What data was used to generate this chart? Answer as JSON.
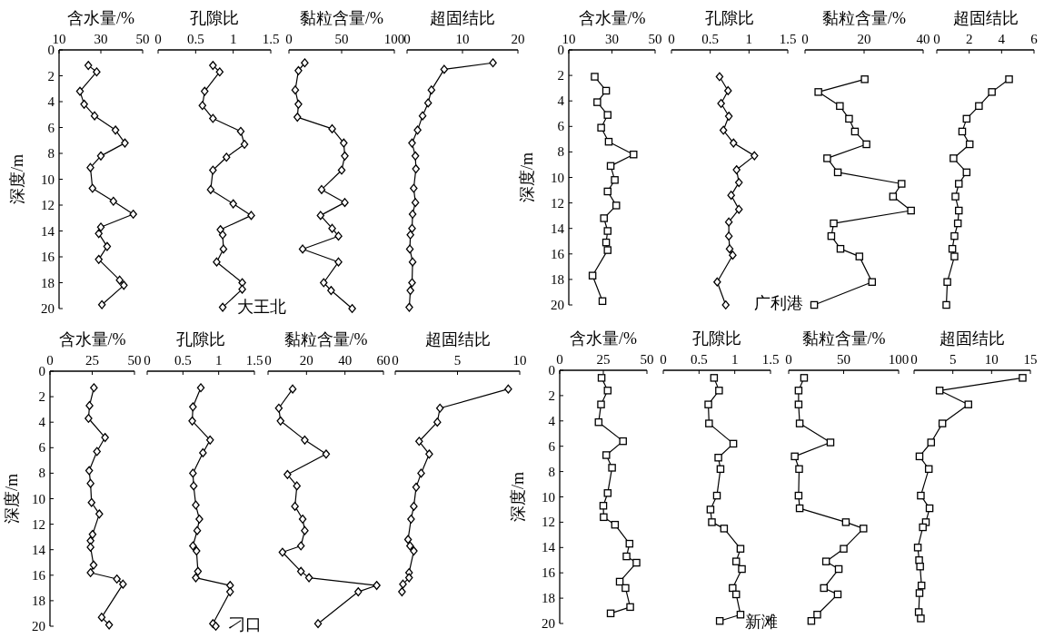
{
  "chart_data": [
    {
      "type": "line",
      "xlabel": "含水量/%",
      "ylabel": "深度/m",
      "xlim": [
        10,
        50
      ],
      "xticks": [
        10,
        30,
        50
      ],
      "ylim": [
        20,
        0
      ],
      "yticks": [
        0,
        2,
        4,
        6,
        8,
        10,
        12,
        14,
        16,
        18,
        20
      ],
      "marker": "diamond",
      "line_style": "solid",
      "series": [
        {
          "color": "#000000",
          "x": [
            24,
            28,
            20,
            22,
            27,
            37,
            41.5,
            30,
            25,
            26,
            36,
            45.5,
            30,
            29,
            33,
            29,
            39,
            41,
            30.5
          ],
          "values": [
            1.2,
            1.7,
            3.2,
            4.2,
            5.1,
            6.2,
            7.2,
            8.2,
            9.1,
            10.7,
            11.7,
            12.7,
            13.7,
            14.2,
            15.2,
            16.2,
            17.8,
            18.2,
            19.7
          ]
        }
      ]
    },
    {
      "type": "line",
      "xlabel": "孔隙比",
      "xlim": [
        0,
        1.5
      ],
      "xticks": [
        0,
        0.5,
        1,
        1.5
      ],
      "ylim": [
        20,
        0
      ],
      "tick_labels": "x",
      "marker": "diamond",
      "line_style": "solid",
      "annotations": [
        "大王北"
      ],
      "series": [
        {
          "color": "#000000",
          "x": [
            0.73,
            0.82,
            0.62,
            0.59,
            0.73,
            1.1,
            1.15,
            0.91,
            0.73,
            0.7,
            1.0,
            1.24,
            0.83,
            0.86,
            0.87,
            0.78,
            1.12,
            1.12,
            0.86
          ],
          "values": [
            1.2,
            1.7,
            3.2,
            4.3,
            5.3,
            6.3,
            7.3,
            8.3,
            9.3,
            10.8,
            11.9,
            12.8,
            13.9,
            14.3,
            15.4,
            16.4,
            18.0,
            18.5,
            19.9
          ]
        }
      ]
    },
    {
      "type": "line",
      "xlabel": "黏粒含量/%",
      "xlim": [
        0,
        100
      ],
      "xticks": [
        0,
        50,
        100
      ],
      "ylim": [
        20,
        0
      ],
      "tick_labels": "x",
      "marker": "diamond",
      "line_style": "solid",
      "series": [
        {
          "color": "#000000",
          "x": [
            15,
            9,
            6,
            9,
            8,
            41,
            52,
            53,
            50,
            31,
            53,
            30,
            41,
            47,
            13,
            47,
            33,
            40,
            60
          ],
          "values": [
            1.0,
            1.6,
            3.1,
            4.2,
            5.2,
            6.1,
            7.2,
            8.2,
            9.3,
            10.8,
            11.8,
            12.8,
            13.8,
            14.4,
            15.4,
            16.4,
            18.0,
            18.6,
            20.0
          ]
        }
      ]
    },
    {
      "type": "line",
      "xlabel": "超固结比",
      "xlim": [
        0,
        20
      ],
      "xticks": [
        0,
        10,
        20
      ],
      "ylim": [
        20,
        0
      ],
      "tick_labels": "x",
      "marker": "diamond",
      "line_style": "solid",
      "series": [
        {
          "color": "#000000",
          "x": [
            15.5,
            6.7,
            4.4,
            3.8,
            2.8,
            1.9,
            0.9,
            1.5,
            1.6,
            1.2,
            1.5,
            1.0,
            0.9,
            0.6,
            0.5,
            1.0,
            0.9,
            0.6,
            0.4
          ],
          "values": [
            1.0,
            1.5,
            3.1,
            4.1,
            5.1,
            6.2,
            7.2,
            8.2,
            9.2,
            10.7,
            11.8,
            12.7,
            13.8,
            14.3,
            15.4,
            16.4,
            18.0,
            18.6,
            19.9
          ]
        }
      ]
    },
    {
      "type": "line",
      "xlabel": "含水量/%",
      "ylabel": "深度/m",
      "xlim": [
        10,
        50
      ],
      "xticks": [
        10,
        30,
        50
      ],
      "ylim": [
        20,
        0
      ],
      "yticks": [
        0,
        2,
        4,
        6,
        8,
        10,
        12,
        14,
        16,
        18,
        20
      ],
      "marker": "square",
      "line_style": "solid",
      "series": [
        {
          "color": "#000000",
          "x": [
            22,
            27.3,
            23.2,
            28,
            25,
            28.5,
            40,
            29.4,
            31.3,
            28,
            32,
            26.3,
            28,
            27.3,
            28,
            21,
            25.6
          ],
          "values": [
            2.1,
            3.2,
            4.1,
            5.1,
            6.1,
            7.2,
            8.2,
            9.1,
            10.2,
            11.1,
            12.2,
            13.2,
            14.2,
            15.1,
            15.7,
            17.7,
            19.7
          ]
        }
      ]
    },
    {
      "type": "line",
      "xlabel": "孔隙比",
      "xlim": [
        0,
        1.5
      ],
      "xticks": [
        0,
        0.5,
        1,
        1.5
      ],
      "ylim": [
        20,
        0
      ],
      "tick_labels": "x",
      "marker": "diamond",
      "line_style": "solid",
      "annotations": [
        "广利港"
      ],
      "series": [
        {
          "color": "#000000",
          "x": [
            0.62,
            0.73,
            0.64,
            0.74,
            0.67,
            0.8,
            1.07,
            0.84,
            0.87,
            0.77,
            0.87,
            0.74,
            0.74,
            0.75,
            0.79,
            0.59,
            0.7
          ],
          "values": [
            2.1,
            3.2,
            4.2,
            5.2,
            6.3,
            7.3,
            8.3,
            9.4,
            10.4,
            11.4,
            12.5,
            13.5,
            14.6,
            15.6,
            16.1,
            18.2,
            20.0
          ]
        }
      ]
    },
    {
      "type": "line",
      "xlabel": "黏粒含量/%",
      "xlim": [
        0,
        40
      ],
      "xticks": [
        0,
        20,
        40
      ],
      "ylim": [
        20,
        0
      ],
      "tick_labels": "x",
      "marker": "square",
      "line_style": "solid",
      "series": [
        {
          "color": "#000000",
          "x": [
            20.2,
            4.5,
            11.8,
            14.9,
            16.9,
            20.8,
            7.5,
            11.1,
            32.7,
            29.8,
            35.9,
            9.7,
            8.9,
            12,
            18.4,
            22.7,
            3.1
          ],
          "values": [
            2.3,
            3.3,
            4.4,
            5.4,
            6.4,
            7.4,
            8.5,
            9.6,
            10.5,
            11.5,
            12.6,
            13.6,
            14.6,
            15.6,
            16.2,
            18.2,
            20.0
          ]
        }
      ]
    },
    {
      "type": "line",
      "xlabel": "超固结比",
      "xlim": [
        0,
        6
      ],
      "xticks": [
        0,
        2,
        4,
        6
      ],
      "ylim": [
        20,
        0
      ],
      "tick_labels": "x",
      "marker": "square",
      "line_style": "solid",
      "series": [
        {
          "color": "#000000",
          "x": [
            4.46,
            3.4,
            2.6,
            1.84,
            1.57,
            2.03,
            1.03,
            1.84,
            1.36,
            1.15,
            1.36,
            1.3,
            1.09,
            0.96,
            1.09,
            0.65,
            0.59
          ],
          "values": [
            2.3,
            3.3,
            4.4,
            5.4,
            6.4,
            7.4,
            8.5,
            9.6,
            10.5,
            11.5,
            12.6,
            13.6,
            14.6,
            15.6,
            16.2,
            18.2,
            20.0
          ]
        }
      ]
    },
    {
      "type": "line",
      "xlabel": "含水量/%",
      "ylabel": "深度/m",
      "xlim": [
        0,
        50
      ],
      "xticks": [
        0,
        25,
        50
      ],
      "ylim": [
        20,
        0
      ],
      "yticks": [
        0,
        2,
        4,
        6,
        8,
        10,
        12,
        14,
        16,
        18,
        20
      ],
      "marker": "diamond",
      "line_style": "solid",
      "series": [
        {
          "color": "#000000",
          "x": [
            26,
            23.4,
            22.8,
            32.6,
            27.8,
            23.2,
            24,
            24.6,
            29.2,
            25.2,
            24,
            24,
            25.8,
            24,
            39.6,
            43.2,
            30.6,
            35
          ],
          "values": [
            1.3,
            2.7,
            3.7,
            5.2,
            6.3,
            7.8,
            8.8,
            10.3,
            11.2,
            12.8,
            13.3,
            13.8,
            15.2,
            15.8,
            16.3,
            16.7,
            19.3,
            19.9
          ]
        }
      ]
    },
    {
      "type": "line",
      "xlabel": "孔隙比",
      "xlim": [
        0,
        1.5
      ],
      "xticks": [
        0,
        0.5,
        1,
        1.5
      ],
      "ylim": [
        20,
        0
      ],
      "tick_labels": "x",
      "marker": "diamond",
      "line_style": "solid",
      "annotations": [
        "刁口"
      ],
      "series": [
        {
          "color": "#000000",
          "x": [
            0.75,
            0.64,
            0.63,
            0.88,
            0.78,
            0.64,
            0.65,
            0.68,
            0.73,
            0.7,
            0.64,
            0.69,
            0.71,
            0.68,
            1.16,
            1.16,
            0.92,
            0.96
          ],
          "values": [
            1.3,
            2.8,
            3.9,
            5.4,
            6.4,
            8.0,
            9.0,
            10.5,
            11.6,
            12.5,
            13.7,
            14.1,
            15.7,
            16.2,
            16.8,
            17.3,
            19.8,
            20.0
          ]
        }
      ]
    },
    {
      "type": "line",
      "xlabel": "黏粒含量/%",
      "xlim": [
        0,
        60
      ],
      "xticks": [
        0,
        20,
        40,
        60
      ],
      "ylim": [
        20,
        0
      ],
      "tick_labels": "x",
      "marker": "diamond",
      "line_style": "solid",
      "series": [
        {
          "color": "#000000",
          "x": [
            12.8,
            5.6,
            6.5,
            19.1,
            30.2,
            10.1,
            15,
            14,
            18,
            19.1,
            17.1,
            7.5,
            17.1,
            21.3,
            56.5,
            46.9,
            26
          ],
          "values": [
            1.4,
            2.9,
            3.9,
            5.4,
            6.5,
            8.1,
            9.0,
            10.6,
            11.6,
            12.5,
            13.7,
            14.2,
            15.7,
            16.2,
            16.8,
            17.3,
            19.8
          ]
        }
      ]
    },
    {
      "type": "line",
      "xlabel": "超固结比",
      "xlim": [
        0,
        10
      ],
      "xticks": [
        0,
        5,
        10
      ],
      "ylim": [
        20,
        0
      ],
      "tick_labels": "x",
      "marker": "diamond",
      "line_style": "solid",
      "series": [
        {
          "color": "#000000",
          "x": [
            9.08,
            3.59,
            3.38,
            1.92,
            2.73,
            2.08,
            1.68,
            1.49,
            1.27,
            1.03,
            1.19,
            1.49,
            1.11,
            1.11,
            0.62,
            0.54
          ],
          "values": [
            1.4,
            2.9,
            4.0,
            5.5,
            6.5,
            8.0,
            9.1,
            10.6,
            11.6,
            13.2,
            13.7,
            14.1,
            15.8,
            16.2,
            16.7,
            17.3
          ]
        }
      ]
    },
    {
      "type": "line",
      "xlabel": "含水量/%",
      "ylabel": "深度/m",
      "xlim": [
        0,
        50
      ],
      "xticks": [
        0,
        25,
        50
      ],
      "ylim": [
        20,
        0
      ],
      "yticks": [
        0,
        2,
        4,
        6,
        8,
        10,
        12,
        14,
        16,
        18,
        20
      ],
      "marker": "square",
      "line_style": "solid",
      "series": [
        {
          "color": "#000000",
          "x": [
            24,
            27.5,
            23.7,
            22.3,
            36.3,
            26.7,
            30,
            27.5,
            25,
            25.2,
            31.7,
            40,
            38.3,
            44,
            34.4,
            37.7,
            40.4,
            29.2
          ],
          "values": [
            0.6,
            1.6,
            2.7,
            4.1,
            5.6,
            6.7,
            7.7,
            9.7,
            10.7,
            11.6,
            12.2,
            13.7,
            14.7,
            15.2,
            16.7,
            17.2,
            18.7,
            19.2
          ]
        }
      ]
    },
    {
      "type": "line",
      "xlabel": "孔隙比",
      "xlim": [
        0,
        1.5
      ],
      "xticks": [
        0,
        0.5,
        1,
        1.5
      ],
      "ylim": [
        20,
        0
      ],
      "tick_labels": "x",
      "marker": "square",
      "line_style": "solid",
      "annotations": [
        "新滩"
      ],
      "series": [
        {
          "color": "#000000",
          "x": [
            0.71,
            0.78,
            0.63,
            0.64,
            0.98,
            0.77,
            0.8,
            0.75,
            0.66,
            0.68,
            0.85,
            1.08,
            1.02,
            1.1,
            0.97,
            1.02,
            1.08,
            0.79
          ],
          "values": [
            0.6,
            1.6,
            2.7,
            4.2,
            5.8,
            6.9,
            7.8,
            9.9,
            11.0,
            12.0,
            12.5,
            14.1,
            15.1,
            15.7,
            17.2,
            17.7,
            19.3,
            19.8
          ]
        }
      ]
    },
    {
      "type": "line",
      "xlabel": "黏粒含量/%",
      "xlim": [
        0,
        100
      ],
      "xticks": [
        0,
        50,
        100
      ],
      "ylim": [
        20,
        0
      ],
      "tick_labels": "x",
      "marker": "square",
      "line_style": "solid",
      "series": [
        {
          "color": "#000000",
          "x": [
            14,
            9,
            9,
            10,
            38,
            5.5,
            9.5,
            9,
            10,
            52,
            68,
            50,
            34,
            45.5,
            32,
            44.6,
            26,
            20.6
          ],
          "values": [
            0.6,
            1.6,
            2.7,
            4.2,
            5.7,
            6.8,
            7.8,
            9.9,
            10.9,
            12.0,
            12.5,
            14.1,
            15.1,
            15.7,
            17.2,
            17.7,
            19.3,
            19.8
          ]
        }
      ]
    },
    {
      "type": "line",
      "xlabel": "超固结比",
      "xlim": [
        0,
        15
      ],
      "xticks": [
        0,
        5,
        10,
        15
      ],
      "ylim": [
        20,
        0
      ],
      "tick_labels": "x",
      "marker": "square",
      "line_style": "solid",
      "series": [
        {
          "color": "#000000",
          "x": [
            14,
            3.3,
            7,
            3.65,
            2.2,
            0.7,
            1.9,
            0.87,
            2,
            1.52,
            1.13,
            0.48,
            0.65,
            0.78,
            0.96,
            0.7,
            0.6,
            0.87
          ],
          "values": [
            0.6,
            1.6,
            2.7,
            4.2,
            5.7,
            6.8,
            7.8,
            9.9,
            10.9,
            12.0,
            12.4,
            14.0,
            15.0,
            15.5,
            17.0,
            17.6,
            19.1,
            19.6
          ]
        }
      ]
    }
  ]
}
